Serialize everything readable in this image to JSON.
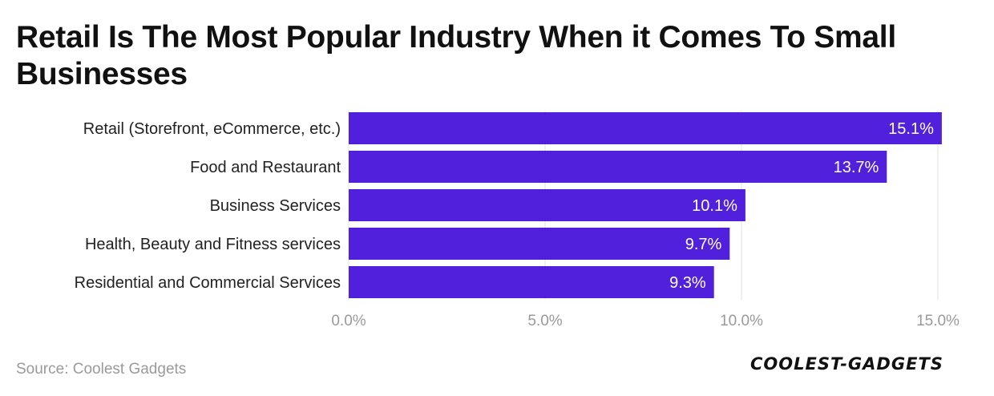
{
  "chart_data": {
    "type": "bar",
    "orientation": "horizontal",
    "title": "Retail Is The Most Popular Industry When it Comes To Small Businesses",
    "categories": [
      "Retail (Storefront, eCommerce, etc.)",
      "Food and Restaurant",
      "Business Services",
      "Health, Beauty and Fitness services",
      "Residential and Commercial Services"
    ],
    "values": [
      15.1,
      13.7,
      10.1,
      9.7,
      9.3
    ],
    "value_labels": [
      "15.1%",
      "13.7%",
      "10.1%",
      "9.7%",
      "9.3%"
    ],
    "xlim": [
      0,
      15
    ],
    "xticks": [
      0,
      5,
      10,
      15
    ],
    "xtick_labels": [
      "0.0%",
      "5.0%",
      "10.0%",
      "15.0%"
    ],
    "xlabel": "",
    "ylabel": "",
    "grid": true,
    "bar_color": "#5120dd"
  },
  "footer": {
    "source": "Source: Coolest Gadgets",
    "logo": "COOLEST-GADGETS"
  },
  "colors": {
    "bar": "#5120dd",
    "grid": "#e2e2e2",
    "tick_text": "#9a9a9a",
    "category_text": "#222222",
    "value_text": "#ffffff"
  }
}
